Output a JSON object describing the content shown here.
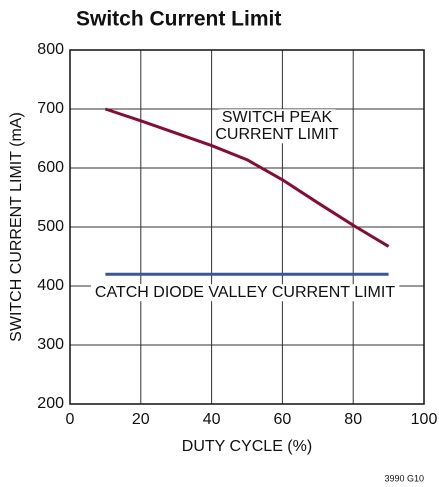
{
  "chart_data": {
    "type": "line",
    "title": "Switch Current Limit",
    "x_label": "DUTY CYCLE (%)",
    "y_label": "SWITCH CURRENT LIMIT (mA)",
    "x": [
      10,
      20,
      30,
      40,
      50,
      60,
      70,
      80,
      90
    ],
    "series": [
      {
        "color": "#8b0a30",
        "values": [
          700,
          680,
          659,
          638,
          614,
          580,
          541,
          503,
          467
        ]
      },
      {
        "color": "#3a55a0",
        "values": [
          420,
          420,
          420,
          420,
          420,
          420,
          420,
          420,
          420
        ]
      }
    ],
    "annotations": [
      "SWITCH PEAK",
      "CURRENT LIMIT",
      "CATCH DIODE VALLEY CURRENT LIMIT"
    ],
    "figure_id": "3990 G10",
    "xlim": [
      0,
      100
    ],
    "xticks": [
      0,
      20,
      40,
      60,
      80,
      100
    ],
    "ylim": [
      200,
      800
    ],
    "yticks": [
      200,
      300,
      400,
      500,
      600,
      700,
      800
    ],
    "grid": true
  }
}
